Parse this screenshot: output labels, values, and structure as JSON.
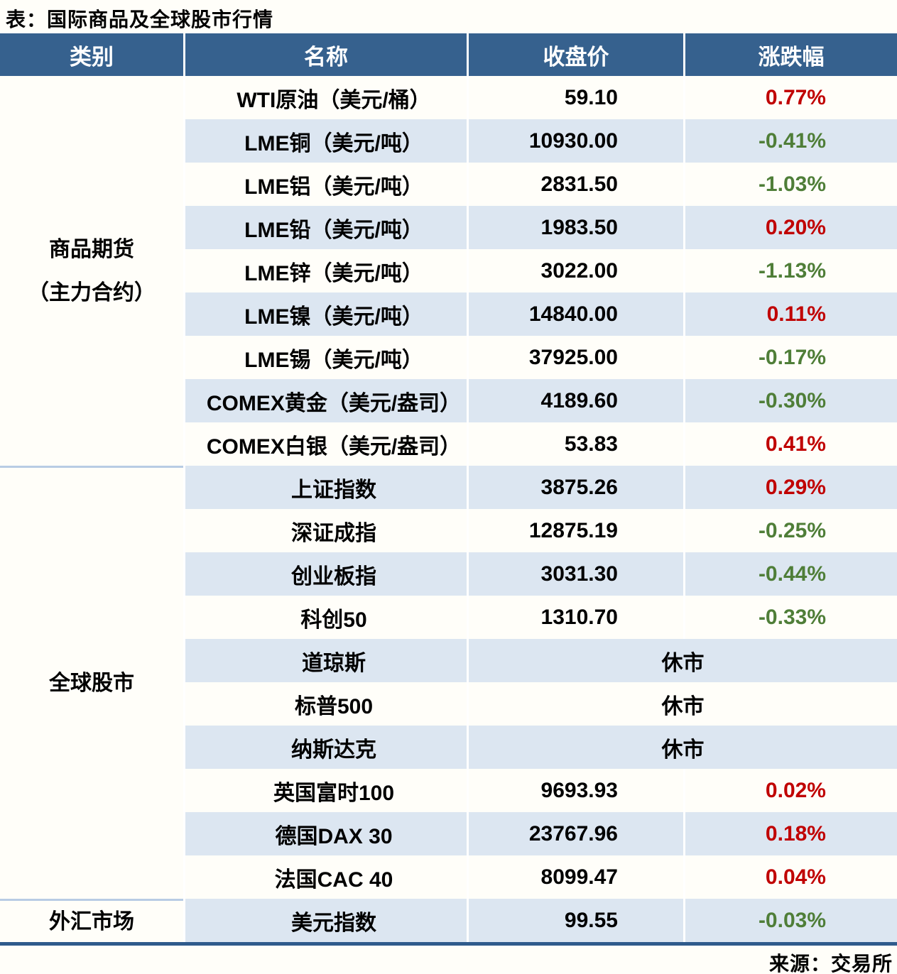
{
  "title": "表：国际商品及全球股市行情",
  "source": "来源：交易所",
  "closed_label": "休市",
  "columns": [
    "类别",
    "名称",
    "收盘价",
    "涨跌幅"
  ],
  "colors": {
    "header_bg": "#36618E",
    "header_text": "#FFFFFF",
    "row_alt_bg": "#DCE6F1",
    "row_plain_bg": "#FFFEF9",
    "up": "#C00000",
    "down": "#4F7E38",
    "section_divider": "#B8CCE4",
    "bottom_border": "#2F5B8C"
  },
  "sections": [
    {
      "category_lines": [
        "商品期货",
        "（主力合约）"
      ],
      "rows": [
        {
          "name": "WTI原油（美元/桶）",
          "close": "59.10",
          "change": "0.77%",
          "direction": "up"
        },
        {
          "name": "LME铜（美元/吨）",
          "close": "10930.00",
          "change": "-0.41%",
          "direction": "down"
        },
        {
          "name": "LME铝（美元/吨）",
          "close": "2831.50",
          "change": "-1.03%",
          "direction": "down"
        },
        {
          "name": "LME铅（美元/吨）",
          "close": "1983.50",
          "change": "0.20%",
          "direction": "up"
        },
        {
          "name": "LME锌（美元/吨）",
          "close": "3022.00",
          "change": "-1.13%",
          "direction": "down"
        },
        {
          "name": "LME镍（美元/吨）",
          "close": "14840.00",
          "change": "0.11%",
          "direction": "up"
        },
        {
          "name": "LME锡（美元/吨）",
          "close": "37925.00",
          "change": "-0.17%",
          "direction": "down"
        },
        {
          "name": "COMEX黄金（美元/盎司）",
          "close": "4189.60",
          "change": "-0.30%",
          "direction": "down"
        },
        {
          "name": "COMEX白银（美元/盎司）",
          "close": "53.83",
          "change": "0.41%",
          "direction": "up"
        }
      ]
    },
    {
      "category_lines": [
        "全球股市"
      ],
      "rows": [
        {
          "name": "上证指数",
          "close": "3875.26",
          "change": "0.29%",
          "direction": "up"
        },
        {
          "name": "深证成指",
          "close": "12875.19",
          "change": "-0.25%",
          "direction": "down"
        },
        {
          "name": "创业板指",
          "close": "3031.30",
          "change": "-0.44%",
          "direction": "down"
        },
        {
          "name": "科创50",
          "close": "1310.70",
          "change": "-0.33%",
          "direction": "down"
        },
        {
          "name": "道琼斯",
          "closed": true
        },
        {
          "name": "标普500",
          "closed": true
        },
        {
          "name": "纳斯达克",
          "closed": true
        },
        {
          "name": "英国富时100",
          "close": "9693.93",
          "change": "0.02%",
          "direction": "up"
        },
        {
          "name": "德国DAX 30",
          "close": "23767.96",
          "change": "0.18%",
          "direction": "up"
        },
        {
          "name": "法国CAC 40",
          "close": "8099.47",
          "change": "0.04%",
          "direction": "up"
        }
      ]
    },
    {
      "category_lines": [
        "外汇市场"
      ],
      "rows": [
        {
          "name": "美元指数",
          "close": "99.55",
          "change": "-0.03%",
          "direction": "down"
        }
      ]
    }
  ]
}
